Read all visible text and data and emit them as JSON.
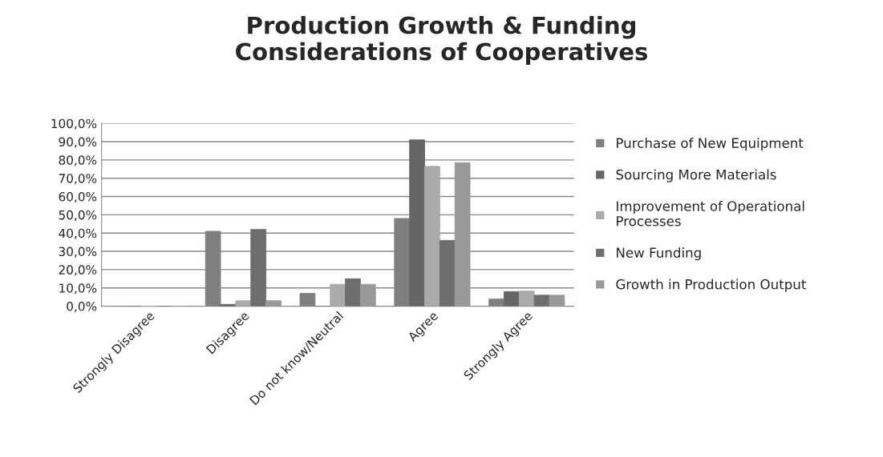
{
  "chart_data": {
    "type": "bar",
    "title": "Production Growth & Funding\nConsiderations of Cooperatives",
    "categories": [
      "Strongly Disagree",
      "Disagree",
      "Do not know/Neutral",
      "Agree",
      "Strongly Agree"
    ],
    "series": [
      {
        "name": "Purchase of New Equipment",
        "color": "#7f7f7f",
        "values": [
          0,
          41,
          7,
          48,
          4
        ]
      },
      {
        "name": "Sourcing More Materials",
        "color": "#666666",
        "values": [
          0,
          1,
          0,
          91,
          8
        ]
      },
      {
        "name": "Improvement of Operational\nProcesses",
        "color": "#aaaaaa",
        "values": [
          0,
          3,
          12,
          76.5,
          8.3
        ]
      },
      {
        "name": "New Funding",
        "color": "#6e6e6e",
        "values": [
          0,
          42,
          15,
          36,
          6
        ]
      },
      {
        "name": "Growth in Production Output",
        "color": "#999999",
        "values": [
          0,
          3,
          12,
          78.5,
          6
        ]
      }
    ],
    "ylim": [
      0,
      100
    ],
    "yticks": [
      {
        "value": 0,
        "label": "0,0%"
      },
      {
        "value": 10,
        "label": "10,0%"
      },
      {
        "value": 20,
        "label": "20,0%"
      },
      {
        "value": 30,
        "label": "30,0%"
      },
      {
        "value": 40,
        "label": "40,0%"
      },
      {
        "value": 50,
        "label": "50,0%"
      },
      {
        "value": 60,
        "label": "60,0%"
      },
      {
        "value": 70,
        "label": "70,0%"
      },
      {
        "value": 80,
        "label": "80,0%"
      },
      {
        "value": 90,
        "label": "90,0%"
      },
      {
        "value": 100,
        "label": "100,0%"
      }
    ],
    "grid": "y",
    "legend": "right"
  }
}
